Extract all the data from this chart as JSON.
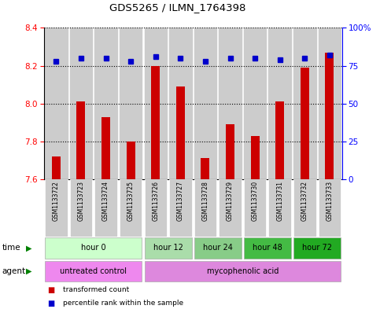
{
  "title": "GDS5265 / ILMN_1764398",
  "samples": [
    "GSM1133722",
    "GSM1133723",
    "GSM1133724",
    "GSM1133725",
    "GSM1133726",
    "GSM1133727",
    "GSM1133728",
    "GSM1133729",
    "GSM1133730",
    "GSM1133731",
    "GSM1133732",
    "GSM1133733"
  ],
  "transformed_count": [
    7.72,
    8.01,
    7.93,
    7.8,
    8.2,
    8.09,
    7.71,
    7.89,
    7.83,
    8.01,
    8.19,
    8.27
  ],
  "percentile_rank": [
    78,
    80,
    80,
    78,
    81,
    80,
    78,
    80,
    80,
    79,
    80,
    82
  ],
  "ylim_left": [
    7.6,
    8.4
  ],
  "ylim_right": [
    0,
    100
  ],
  "yticks_left": [
    7.6,
    7.8,
    8.0,
    8.2,
    8.4
  ],
  "yticks_right": [
    0,
    25,
    50,
    75,
    100
  ],
  "bar_color": "#cc0000",
  "dot_color": "#0000cc",
  "time_groups": [
    {
      "label": "hour 0",
      "start": 0,
      "end": 3,
      "color": "#ccffcc"
    },
    {
      "label": "hour 12",
      "start": 4,
      "end": 5,
      "color": "#aaddaa"
    },
    {
      "label": "hour 24",
      "start": 6,
      "end": 7,
      "color": "#88cc88"
    },
    {
      "label": "hour 48",
      "start": 8,
      "end": 9,
      "color": "#44bb44"
    },
    {
      "label": "hour 72",
      "start": 10,
      "end": 11,
      "color": "#22aa22"
    }
  ],
  "agent_groups": [
    {
      "label": "untreated control",
      "start": 0,
      "end": 3,
      "color": "#ee88ee"
    },
    {
      "label": "mycophenolic acid",
      "start": 4,
      "end": 11,
      "color": "#dd88dd"
    }
  ],
  "legend_items": [
    "transformed count",
    "percentile rank within the sample"
  ],
  "background_color": "#ffffff",
  "sample_bg_color": "#cccccc",
  "plot_bg_color": "#ffffff",
  "border_color": "#000000"
}
